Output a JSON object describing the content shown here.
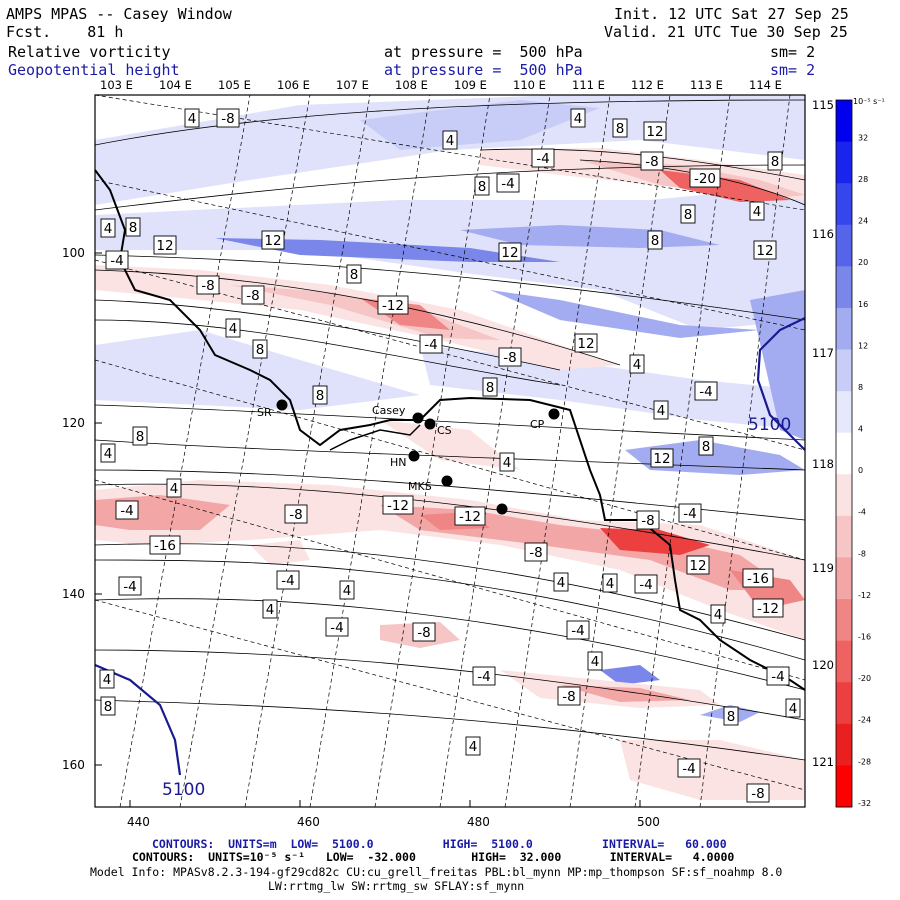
{
  "header": {
    "title": "AMPS MPAS -- Casey Window",
    "forecast": "Fcst.    81 h",
    "init": "Init. 12 UTC Sat 27 Sep 25",
    "valid": "Valid. 21 UTC Tue 30 Sep 25",
    "field1": {
      "name": "Relative vorticity",
      "level": "at pressure =  500 hPa",
      "smooth": "sm= 2"
    },
    "field2": {
      "name": "Geopotential height",
      "level": "at pressure =  500 hPa",
      "smooth": "sm= 2"
    }
  },
  "axes": {
    "top_lon": [
      "103 E",
      "104 E",
      "105 E",
      "106 E",
      "107 E",
      "108 E",
      "109 E",
      "110 E",
      "111 E",
      "112 E",
      "113 E",
      "114 E"
    ],
    "right_lon": [
      "115 E",
      "116 E",
      "117 E",
      "118 E",
      "119 E",
      "120 E",
      "121 E"
    ],
    "x_ticks": [
      "440",
      "460",
      "480",
      "500"
    ],
    "y_ticks": [
      "100",
      "120",
      "140",
      "160"
    ]
  },
  "colorbar": {
    "unit": "10⁻⁵ s⁻¹",
    "labels": [
      "32",
      "28",
      "24",
      "20",
      "16",
      "12",
      "8",
      "4",
      "0",
      "-4",
      "-8",
      "-12",
      "-16",
      "-20",
      "-24",
      "-28",
      "-32"
    ],
    "colors": [
      "#0000ee",
      "#1a24ef",
      "#3646ec",
      "#5564e8",
      "#7a86e9",
      "#a3acf0",
      "#c7cdf6",
      "#e6e8fb",
      "#ffffff",
      "#fbe3e3",
      "#f6c5c5",
      "#f3a6a6",
      "#f08585",
      "#ee6262",
      "#ec4040",
      "#ea2020",
      "#ff0000"
    ]
  },
  "stations": [
    {
      "name": "SR"
    },
    {
      "name": "Casey"
    },
    {
      "name": "CS"
    },
    {
      "name": "CP"
    },
    {
      "name": "HN"
    },
    {
      "name": "MKS"
    }
  ],
  "contour_labels": [
    {
      "text": "4"
    },
    {
      "text": "-8"
    },
    {
      "text": "-4"
    },
    {
      "text": "4"
    },
    {
      "text": "4"
    },
    {
      "text": "8"
    },
    {
      "text": "12"
    },
    {
      "text": "-8"
    },
    {
      "text": "8"
    },
    {
      "text": "-4"
    },
    {
      "text": "-20"
    },
    {
      "text": "8"
    },
    {
      "text": "4"
    },
    {
      "text": "8"
    },
    {
      "text": "4"
    },
    {
      "text": "8"
    },
    {
      "text": "12"
    },
    {
      "text": "12"
    },
    {
      "text": "12"
    },
    {
      "text": "8"
    },
    {
      "text": "-4"
    },
    {
      "text": "-8"
    },
    {
      "text": "-8"
    },
    {
      "text": "8"
    },
    {
      "text": "-12"
    },
    {
      "text": "12"
    },
    {
      "text": "4"
    },
    {
      "text": "8"
    },
    {
      "text": "-4"
    },
    {
      "text": "-8"
    },
    {
      "text": "12"
    },
    {
      "text": "4"
    },
    {
      "text": "8"
    },
    {
      "text": "8"
    },
    {
      "text": "-4"
    },
    {
      "text": "4"
    },
    {
      "text": "8"
    },
    {
      "text": "4"
    },
    {
      "text": "8"
    },
    {
      "text": "12"
    },
    {
      "text": "4"
    },
    {
      "text": "4"
    },
    {
      "text": "-4"
    },
    {
      "text": "-12"
    },
    {
      "text": "-8"
    },
    {
      "text": "-12"
    },
    {
      "text": "-16"
    },
    {
      "text": "-8"
    },
    {
      "text": "-4"
    },
    {
      "text": "-8"
    },
    {
      "text": "-4"
    },
    {
      "text": "-4"
    },
    {
      "text": "-4"
    },
    {
      "text": "4"
    },
    {
      "text": "4"
    },
    {
      "text": "4"
    },
    {
      "text": "-4"
    },
    {
      "text": "12"
    },
    {
      "text": "-16"
    },
    {
      "text": "4"
    },
    {
      "text": "-12"
    },
    {
      "text": "4"
    },
    {
      "text": "-4"
    },
    {
      "text": "-8"
    },
    {
      "text": "-4"
    },
    {
      "text": "4"
    },
    {
      "text": "4"
    },
    {
      "text": "-4"
    },
    {
      "text": "-8"
    },
    {
      "text": "8"
    },
    {
      "text": "4"
    },
    {
      "text": "8"
    },
    {
      "text": "4"
    },
    {
      "text": "-4"
    },
    {
      "text": "-8"
    }
  ],
  "height_labels": [
    "5100",
    "5100"
  ],
  "footer": {
    "line1": "CONTOURS:  UNITS=m  LOW=  5100.0          HIGH=  5100.0          INTERVAL=   60.000",
    "line2": "CONTOURS:  UNITS=10⁻⁵ s⁻¹   LOW=  -32.000        HIGH=  32.000       INTERVAL=   4.0000",
    "line3": "Model Info: MPASv8.2.3-194-gf29cd82c CU:cu_grell_freitas PBL:bl_mynn MP:mp_thompson SF:sf_noahmp 8.0",
    "line4": "LW:rrtmg_lw SW:rrtmg_sw SFLAY:sf_mynn"
  }
}
